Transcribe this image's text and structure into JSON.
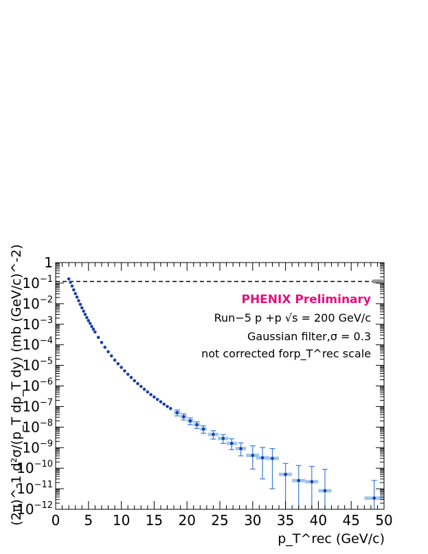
{
  "chart_data": {
    "type": "scatter",
    "title": "",
    "xlabel": "p_T^rec (GeV/c)",
    "ylabel": "(2π)^-1 d²σ/(p_T dp_T dy) (mb (GeV/c)^-2)",
    "xlim": [
      0,
      50
    ],
    "ylim": [
      1e-12,
      1
    ],
    "yscale": "log",
    "grid": false,
    "x_ticks": [
      "0",
      "5",
      "10",
      "15",
      "20",
      "25",
      "30",
      "35",
      "40",
      "45",
      "50"
    ],
    "y_ticks": [
      {
        "base": "1",
        "exp": ""
      },
      {
        "base": "10",
        "exp": "−1"
      },
      {
        "base": "10",
        "exp": "−2"
      },
      {
        "base": "10",
        "exp": "−3"
      },
      {
        "base": "10",
        "exp": "−4"
      },
      {
        "base": "10",
        "exp": "−5"
      },
      {
        "base": "10",
        "exp": "−6"
      },
      {
        "base": "10",
        "exp": "−7"
      },
      {
        "base": "10",
        "exp": "−8"
      },
      {
        "base": "10",
        "exp": "−9"
      },
      {
        "base": "10",
        "exp": "−10"
      },
      {
        "base": "10",
        "exp": "−11"
      },
      {
        "base": "10",
        "exp": "−12"
      }
    ],
    "reference_line": {
      "y": 0.12,
      "style": "dashed"
    },
    "annotations": {
      "title": "PHENIX Preliminary",
      "title_color": "#e0107f",
      "line2": "Run−5 p +p √s = 200 GeV/c",
      "line3": "Gaussian filter,σ = 0.3",
      "line4": "not corrected forp_T^rec scale"
    },
    "colors": {
      "points": "#1a3fa8",
      "error_bars": "#3a78d8",
      "bin_boxes": "#9ec5ee"
    },
    "series": [
      {
        "points": [
          {
            "x": 2.0,
            "y": 0.16
          },
          {
            "x": 2.25,
            "y": 0.11
          },
          {
            "x": 2.5,
            "y": 0.072
          },
          {
            "x": 2.75,
            "y": 0.047
          },
          {
            "x": 3.0,
            "y": 0.031
          },
          {
            "x": 3.25,
            "y": 0.021
          },
          {
            "x": 3.5,
            "y": 0.014
          },
          {
            "x": 3.75,
            "y": 0.0093
          },
          {
            "x": 4.0,
            "y": 0.0063
          },
          {
            "x": 4.25,
            "y": 0.0043
          },
          {
            "x": 4.5,
            "y": 0.003
          },
          {
            "x": 4.75,
            "y": 0.0021
          },
          {
            "x": 5.0,
            "y": 0.0015
          },
          {
            "x": 5.25,
            "y": 0.0011
          },
          {
            "x": 5.5,
            "y": 0.00078
          },
          {
            "x": 5.75,
            "y": 0.00057
          },
          {
            "x": 6.0,
            "y": 0.00042
          },
          {
            "x": 6.5,
            "y": 0.00023
          },
          {
            "x": 7.0,
            "y": 0.00013
          },
          {
            "x": 7.5,
            "y": 7.6e-05
          },
          {
            "x": 8.0,
            "y": 4.6e-05
          },
          {
            "x": 8.5,
            "y": 2.9e-05
          },
          {
            "x": 9.0,
            "y": 1.8e-05
          },
          {
            "x": 9.5,
            "y": 1.2e-05
          },
          {
            "x": 10.0,
            "y": 8e-06
          },
          {
            "x": 10.5,
            "y": 5.4e-06
          },
          {
            "x": 11.0,
            "y": 3.7e-06
          },
          {
            "x": 11.5,
            "y": 2.6e-06
          },
          {
            "x": 12.0,
            "y": 1.8e-06
          },
          {
            "x": 12.5,
            "y": 1.3e-06
          },
          {
            "x": 13.0,
            "y": 9.4e-07
          },
          {
            "x": 13.5,
            "y": 6.9e-07
          },
          {
            "x": 14.0,
            "y": 5.1e-07
          },
          {
            "x": 14.5,
            "y": 3.8e-07
          },
          {
            "x": 15.0,
            "y": 2.9e-07
          },
          {
            "x": 15.5,
            "y": 2.2e-07
          },
          {
            "x": 16.0,
            "y": 1.7e-07
          },
          {
            "x": 16.5,
            "y": 1.3e-07
          },
          {
            "x": 17.0,
            "y": 1e-07
          },
          {
            "x": 17.5,
            "y": 8e-08
          },
          {
            "x": 18.5,
            "y": 5e-08,
            "err_lo": 1.5e-08,
            "err_hi": 1.8e-08,
            "xerr": 0.5
          },
          {
            "x": 19.5,
            "y": 3.2e-08,
            "err_lo": 1e-08,
            "err_hi": 1.2e-08,
            "xerr": 0.5
          },
          {
            "x": 20.5,
            "y": 2e-08,
            "err_lo": 7e-09,
            "err_hi": 8e-09,
            "xerr": 0.5
          },
          {
            "x": 21.5,
            "y": 1.3e-08,
            "err_lo": 4.5e-09,
            "err_hi": 5e-09,
            "xerr": 0.5
          },
          {
            "x": 22.5,
            "y": 8e-09,
            "err_lo": 3e-09,
            "err_hi": 3.5e-09,
            "xerr": 0.5
          },
          {
            "x": 24.0,
            "y": 4.4e-09,
            "err_lo": 1.8e-09,
            "err_hi": 2.2e-09,
            "xerr": 0.8
          },
          {
            "x": 25.5,
            "y": 2.8e-09,
            "err_lo": 1.2e-09,
            "err_hi": 1.5e-09,
            "xerr": 0.8
          },
          {
            "x": 26.8,
            "y": 1.6e-09,
            "err_lo": 8e-10,
            "err_hi": 1.1e-09,
            "xerr": 0.8
          },
          {
            "x": 28.2,
            "y": 9e-10,
            "err_lo": 5e-10,
            "err_hi": 8e-10,
            "xerr": 0.8
          },
          {
            "x": 30.0,
            "y": 4.2e-10,
            "err_lo": 3.3e-10,
            "err_hi": 8e-10,
            "xerr": 1.0
          },
          {
            "x": 31.5,
            "y": 3.2e-10,
            "err_lo": 2.9e-10,
            "err_hi": 7e-10,
            "xerr": 1.0
          },
          {
            "x": 33.0,
            "y": 3e-10,
            "err_lo": 2.9e-10,
            "err_hi": 6e-10,
            "xerr": 1.0
          },
          {
            "x": 35.0,
            "y": 5e-11,
            "err_lo": 4.99e-11,
            "err_hi": 1.2e-10,
            "xerr": 1.0
          },
          {
            "x": 37.0,
            "y": 2.5e-11,
            "err_lo": 2.49e-11,
            "err_hi": 1.1e-10,
            "xerr": 1.0
          },
          {
            "x": 39.0,
            "y": 2.2e-11,
            "err_lo": 2.19e-11,
            "err_hi": 1e-10,
            "xerr": 1.0
          },
          {
            "x": 41.0,
            "y": 8e-12,
            "err_lo": 7e-12,
            "err_hi": 8e-11,
            "xerr": 1.0
          },
          {
            "x": 48.5,
            "y": 3.5e-12,
            "err_lo": 3.49e-12,
            "err_hi": 2.2e-11,
            "xerr": 1.5
          }
        ]
      }
    ]
  }
}
